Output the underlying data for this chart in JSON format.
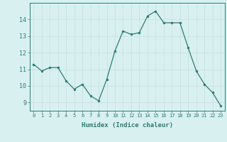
{
  "x": [
    0,
    1,
    2,
    3,
    4,
    5,
    6,
    7,
    8,
    9,
    10,
    11,
    12,
    13,
    14,
    15,
    16,
    17,
    18,
    19,
    20,
    21,
    22,
    23
  ],
  "y": [
    11.3,
    10.9,
    11.1,
    11.1,
    10.3,
    9.8,
    10.1,
    9.4,
    9.1,
    10.4,
    12.1,
    13.3,
    13.1,
    13.2,
    14.2,
    14.5,
    13.8,
    13.8,
    13.8,
    12.3,
    10.9,
    10.1,
    9.6,
    8.8
  ],
  "xlabel": "Humidex (Indice chaleur)",
  "xlim": [
    -0.5,
    23.5
  ],
  "ylim": [
    8.5,
    15.0
  ],
  "yticks": [
    9,
    10,
    11,
    12,
    13,
    14
  ],
  "xticks": [
    0,
    1,
    2,
    3,
    4,
    5,
    6,
    7,
    8,
    9,
    10,
    11,
    12,
    13,
    14,
    15,
    16,
    17,
    18,
    19,
    20,
    21,
    22,
    23
  ],
  "line_color": "#2e7d6e",
  "marker_color": "#2e7d6e",
  "bg_color": "#d8f0f0",
  "grid_color": "#c8dede",
  "axis_color": "#2e7d6e",
  "tick_color": "#2e7d6e",
  "label_color": "#2e7d6e"
}
